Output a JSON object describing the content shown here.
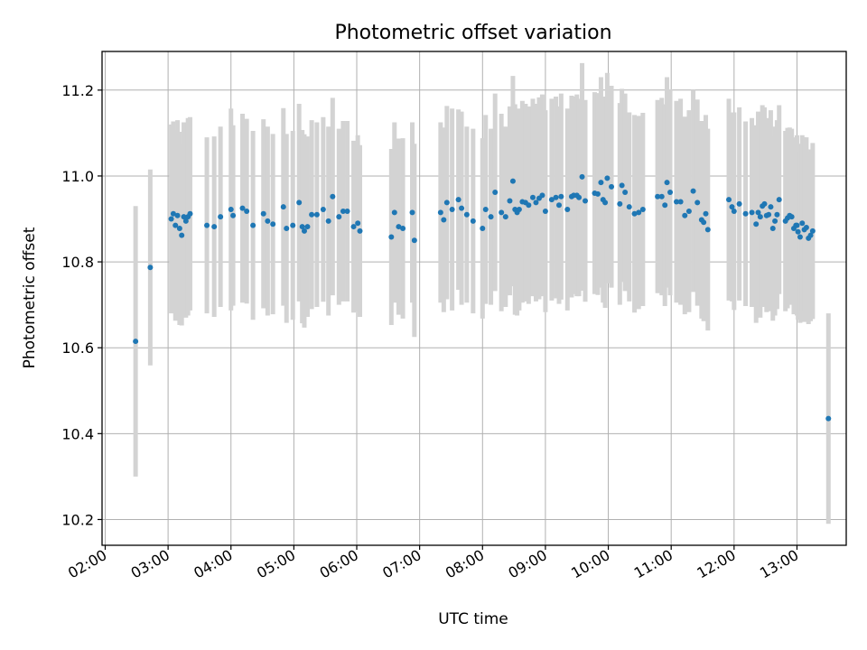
{
  "chart_data": {
    "type": "scatter",
    "title": "Photometric offset variation",
    "xlabel": "UTC time",
    "ylabel": "Photometric offset",
    "x_ticks": [
      "02:00",
      "03:00",
      "04:00",
      "05:00",
      "06:00",
      "07:00",
      "08:00",
      "09:00",
      "10:00",
      "11:00",
      "12:00",
      "13:00"
    ],
    "y_ticks": [
      "10.2",
      "10.4",
      "10.6",
      "10.8",
      "11.0",
      "11.2"
    ],
    "xlim": [
      "01:57",
      "13:47"
    ],
    "ylim": [
      10.14,
      11.29
    ],
    "grid": true,
    "marker_color": "#1f77b4",
    "errorbar_color": "#d3d3d3",
    "series": [
      {
        "points": [
          [
            "02:29",
            10.615,
            0.315
          ],
          [
            "02:43",
            10.787,
            0.228
          ],
          [
            "03:03",
            10.9,
            0.22
          ],
          [
            "03:05",
            10.912,
            0.215
          ],
          [
            "03:07",
            10.885,
            0.222
          ],
          [
            "03:09",
            10.908,
            0.222
          ],
          [
            "03:11",
            10.878,
            0.225
          ],
          [
            "03:13",
            10.862,
            0.21
          ],
          [
            "03:15",
            10.905,
            0.22
          ],
          [
            "03:17",
            10.895,
            0.225
          ],
          [
            "03:19",
            10.905,
            0.23
          ],
          [
            "03:21",
            10.912,
            0.225
          ],
          [
            "03:37",
            10.885,
            0.205
          ],
          [
            "03:44",
            10.882,
            0.21
          ],
          [
            "03:50",
            10.905,
            0.21
          ],
          [
            "04:00",
            10.922,
            0.235
          ],
          [
            "04:02",
            10.908,
            0.21
          ],
          [
            "04:11",
            10.925,
            0.22
          ],
          [
            "04:15",
            10.918,
            0.215
          ],
          [
            "04:21",
            10.885,
            0.22
          ],
          [
            "04:31",
            10.912,
            0.22
          ],
          [
            "04:35",
            10.895,
            0.22
          ],
          [
            "04:40",
            10.888,
            0.21
          ],
          [
            "04:50",
            10.928,
            0.23
          ],
          [
            "04:53",
            10.878,
            0.22
          ],
          [
            "04:59",
            10.885,
            0.22
          ],
          [
            "05:05",
            10.938,
            0.23
          ],
          [
            "05:08",
            10.882,
            0.225
          ],
          [
            "05:10",
            10.872,
            0.225
          ],
          [
            "05:13",
            10.882,
            0.21
          ],
          [
            "05:17",
            10.91,
            0.22
          ],
          [
            "05:22",
            10.91,
            0.215
          ],
          [
            "05:28",
            10.922,
            0.215
          ],
          [
            "05:33",
            10.895,
            0.22
          ],
          [
            "05:37",
            10.952,
            0.23
          ],
          [
            "05:43",
            10.905,
            0.205
          ],
          [
            "05:47",
            10.918,
            0.21
          ],
          [
            "05:51",
            10.918,
            0.21
          ],
          [
            "05:57",
            10.882,
            0.2
          ],
          [
            "06:01",
            10.89,
            0.205
          ],
          [
            "06:03",
            10.872,
            0.2
          ],
          [
            "06:33",
            10.858,
            0.205
          ],
          [
            "06:36",
            10.915,
            0.21
          ],
          [
            "06:40",
            10.882,
            0.205
          ],
          [
            "06:44",
            10.878,
            0.21
          ],
          [
            "06:53",
            10.915,
            0.21
          ],
          [
            "06:55",
            10.85,
            0.225
          ],
          [
            "07:20",
            10.915,
            0.21
          ],
          [
            "07:23",
            10.898,
            0.215
          ],
          [
            "07:26",
            10.938,
            0.225
          ],
          [
            "07:31",
            10.922,
            0.235
          ],
          [
            "07:37",
            10.945,
            0.21
          ],
          [
            "07:40",
            10.925,
            0.225
          ],
          [
            "07:45",
            10.91,
            0.205
          ],
          [
            "07:51",
            10.895,
            0.215
          ],
          [
            "08:00",
            10.878,
            0.21
          ],
          [
            "08:03",
            10.922,
            0.22
          ],
          [
            "08:08",
            10.905,
            0.205
          ],
          [
            "08:12",
            10.962,
            0.23
          ],
          [
            "08:18",
            10.915,
            0.23
          ],
          [
            "08:22",
            10.905,
            0.21
          ],
          [
            "08:26",
            10.942,
            0.22
          ],
          [
            "08:29",
            10.988,
            0.245
          ],
          [
            "08:31",
            10.922,
            0.245
          ],
          [
            "08:33",
            10.915,
            0.24
          ],
          [
            "08:35",
            10.922,
            0.235
          ],
          [
            "08:38",
            10.94,
            0.235
          ],
          [
            "08:41",
            10.938,
            0.23
          ],
          [
            "08:44",
            10.932,
            0.23
          ],
          [
            "08:48",
            10.95,
            0.23
          ],
          [
            "08:51",
            10.938,
            0.23
          ],
          [
            "08:54",
            10.948,
            0.235
          ],
          [
            "08:57",
            10.955,
            0.235
          ],
          [
            "09:00",
            10.918,
            0.235
          ],
          [
            "09:06",
            10.945,
            0.235
          ],
          [
            "09:10",
            10.95,
            0.235
          ],
          [
            "09:13",
            10.932,
            0.23
          ],
          [
            "09:15",
            10.952,
            0.24
          ],
          [
            "09:21",
            10.922,
            0.235
          ],
          [
            "09:25",
            10.952,
            0.235
          ],
          [
            "09:27",
            10.955,
            0.23
          ],
          [
            "09:30",
            10.955,
            0.235
          ],
          [
            "09:32",
            10.95,
            0.23
          ],
          [
            "09:35",
            10.998,
            0.265
          ],
          [
            "09:38",
            10.942,
            0.235
          ],
          [
            "09:47",
            10.96,
            0.235
          ],
          [
            "09:50",
            10.958,
            0.235
          ],
          [
            "09:53",
            10.985,
            0.245
          ],
          [
            "09:55",
            10.945,
            0.24
          ],
          [
            "09:57",
            10.938,
            0.245
          ],
          [
            "09:59",
            10.995,
            0.245
          ],
          [
            "10:03",
            10.975,
            0.235
          ],
          [
            "10:11",
            10.935,
            0.235
          ],
          [
            "10:13",
            10.978,
            0.225
          ],
          [
            "10:16",
            10.962,
            0.23
          ],
          [
            "10:20",
            10.928,
            0.22
          ],
          [
            "10:25",
            10.912,
            0.23
          ],
          [
            "10:29",
            10.915,
            0.225
          ],
          [
            "10:33",
            10.922,
            0.225
          ],
          [
            "10:47",
            10.952,
            0.225
          ],
          [
            "10:51",
            10.952,
            0.23
          ],
          [
            "10:54",
            10.932,
            0.235
          ],
          [
            "10:56",
            10.985,
            0.245
          ],
          [
            "10:59",
            10.962,
            0.24
          ],
          [
            "11:05",
            10.94,
            0.235
          ],
          [
            "11:09",
            10.94,
            0.24
          ],
          [
            "11:13",
            10.908,
            0.23
          ],
          [
            "11:17",
            10.918,
            0.235
          ],
          [
            "11:21",
            10.965,
            0.235
          ],
          [
            "11:25",
            10.938,
            0.24
          ],
          [
            "11:29",
            10.898,
            0.23
          ],
          [
            "11:31",
            10.892,
            0.23
          ],
          [
            "11:33",
            10.912,
            0.23
          ],
          [
            "11:35",
            10.875,
            0.235
          ],
          [
            "11:55",
            10.945,
            0.235
          ],
          [
            "11:58",
            10.928,
            0.22
          ],
          [
            "12:00",
            10.918,
            0.23
          ],
          [
            "12:05",
            10.935,
            0.225
          ],
          [
            "12:11",
            10.912,
            0.215
          ],
          [
            "12:17",
            10.915,
            0.22
          ],
          [
            "12:21",
            10.888,
            0.23
          ],
          [
            "12:23",
            10.915,
            0.235
          ],
          [
            "12:25",
            10.905,
            0.235
          ],
          [
            "12:27",
            10.93,
            0.235
          ],
          [
            "12:29",
            10.935,
            0.225
          ],
          [
            "12:31",
            10.908,
            0.225
          ],
          [
            "12:33",
            10.91,
            0.225
          ],
          [
            "12:35",
            10.928,
            0.225
          ],
          [
            "12:37",
            10.878,
            0.215
          ],
          [
            "12:39",
            10.895,
            0.22
          ],
          [
            "12:41",
            10.91,
            0.22
          ],
          [
            "12:43",
            10.945,
            0.22
          ],
          [
            "12:49",
            10.895,
            0.21
          ],
          [
            "12:51",
            10.902,
            0.21
          ],
          [
            "12:53",
            10.908,
            0.205
          ],
          [
            "12:55",
            10.905,
            0.205
          ],
          [
            "12:57",
            10.878,
            0.2
          ],
          [
            "12:59",
            10.885,
            0.205
          ],
          [
            "13:00",
            10.885,
            0.21
          ],
          [
            "13:01",
            10.87,
            0.205
          ],
          [
            "13:03",
            10.858,
            0.2
          ],
          [
            "13:05",
            10.89,
            0.205
          ],
          [
            "13:07",
            10.875,
            0.215
          ],
          [
            "13:09",
            10.88,
            0.21
          ],
          [
            "13:11",
            10.855,
            0.2
          ],
          [
            "13:13",
            10.862,
            0.2
          ],
          [
            "13:15",
            10.872,
            0.205
          ],
          [
            "13:30",
            10.435,
            0.245
          ]
        ]
      }
    ]
  }
}
